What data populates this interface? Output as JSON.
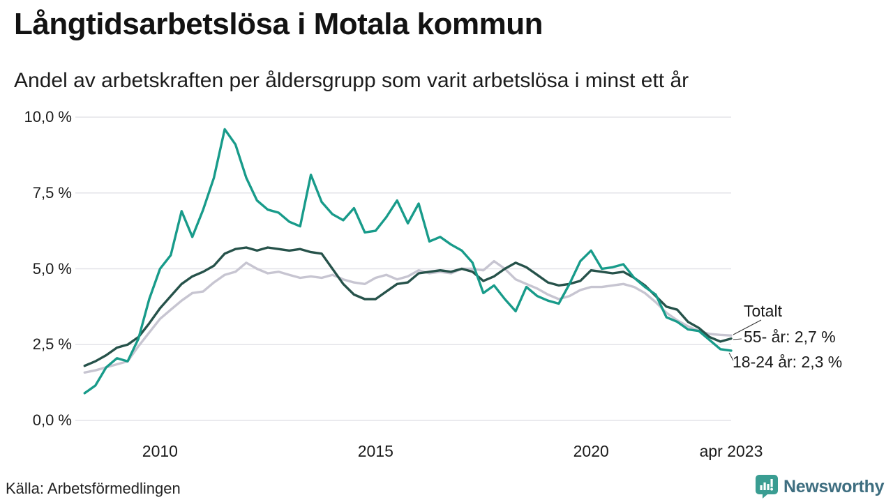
{
  "header": {
    "title": "Långtidsarbetslösa i Motala kommun",
    "subtitle": "Andel av arbetskraften per åldersgrupp som varit arbetslösa i minst ett år"
  },
  "source": {
    "label": "Källa: Arbetsförmedlingen"
  },
  "logo": {
    "brand": "Newsworthy",
    "icon": "newsworthy-speech-bubble-bar-chart-icon",
    "icon_color": "#3a9d92",
    "text_color": "#3e6e80"
  },
  "chart_data": {
    "type": "line",
    "title": "Långtidsarbetslösa i Motala kommun",
    "subtitle": "Andel av arbetskraften per åldersgrupp som varit arbetslösa i minst ett år",
    "unit": "% av arbetskraften",
    "x_start": 2008.25,
    "x_step": 0.25,
    "x_domain": [
      2008.1,
      2023.25
    ],
    "ylim": [
      0,
      10
    ],
    "grid": "horizontal",
    "y_ticks": [
      {
        "v": 10,
        "label": "10,0 %"
      },
      {
        "v": 7.5,
        "label": "7,5 %"
      },
      {
        "v": 5,
        "label": "5,0 %"
      },
      {
        "v": 2.5,
        "label": "2,5 %"
      },
      {
        "v": 0,
        "label": "0,0 %"
      }
    ],
    "x_ticks": [
      {
        "v": 2010,
        "label": "2010"
      },
      {
        "v": 2015,
        "label": "2015"
      },
      {
        "v": 2020,
        "label": "2020"
      },
      {
        "v": 2023.25,
        "label": "apr 2023"
      }
    ],
    "series": [
      {
        "name": "Totalt",
        "color": "#c7c5d1",
        "values": [
          1.58,
          1.65,
          1.75,
          1.85,
          1.95,
          2.45,
          2.9,
          3.35,
          3.65,
          3.95,
          4.2,
          4.25,
          4.55,
          4.8,
          4.9,
          5.2,
          5.0,
          4.85,
          4.9,
          4.8,
          4.7,
          4.75,
          4.7,
          4.8,
          4.65,
          4.55,
          4.5,
          4.7,
          4.8,
          4.65,
          4.75,
          4.95,
          4.85,
          4.9,
          4.85,
          5.0,
          5.0,
          4.95,
          5.25,
          5.0,
          4.65,
          4.5,
          4.35,
          4.15,
          4.0,
          4.1,
          4.3,
          4.4,
          4.4,
          4.45,
          4.5,
          4.4,
          4.2,
          3.9,
          3.55,
          3.3,
          3.1,
          2.95,
          2.85,
          2.82,
          2.8
        ]
      },
      {
        "name": "55- år",
        "color": "#26524a",
        "values": [
          1.8,
          1.95,
          2.15,
          2.4,
          2.5,
          2.75,
          3.2,
          3.7,
          4.1,
          4.5,
          4.75,
          4.9,
          5.1,
          5.5,
          5.65,
          5.7,
          5.6,
          5.7,
          5.65,
          5.6,
          5.65,
          5.55,
          5.5,
          5.0,
          4.5,
          4.15,
          4.0,
          4.0,
          4.25,
          4.5,
          4.55,
          4.85,
          4.9,
          4.95,
          4.9,
          5.0,
          4.9,
          4.6,
          4.75,
          5.0,
          5.2,
          5.05,
          4.8,
          4.55,
          4.45,
          4.5,
          4.6,
          4.95,
          4.9,
          4.85,
          4.9,
          4.7,
          4.45,
          4.1,
          3.75,
          3.65,
          3.25,
          3.05,
          2.75,
          2.6,
          2.7
        ]
      },
      {
        "name": "18-24 år",
        "color": "#189b8a",
        "values": [
          0.9,
          1.15,
          1.75,
          2.05,
          1.95,
          2.7,
          4.0,
          5.0,
          5.45,
          6.9,
          6.05,
          6.95,
          8.0,
          9.6,
          9.1,
          8.0,
          7.25,
          6.95,
          6.85,
          6.55,
          6.4,
          8.1,
          7.2,
          6.8,
          6.6,
          7.0,
          6.2,
          6.25,
          6.7,
          7.25,
          6.5,
          7.15,
          5.9,
          6.05,
          5.8,
          5.6,
          5.2,
          4.2,
          4.45,
          4.0,
          3.6,
          4.4,
          4.1,
          3.95,
          3.85,
          4.5,
          5.25,
          5.6,
          5.0,
          5.05,
          5.15,
          4.7,
          4.4,
          4.15,
          3.4,
          3.25,
          3.0,
          2.95,
          2.65,
          2.35,
          2.3
        ]
      }
    ],
    "annotations": [
      {
        "text": "Totalt",
        "series": "Totalt",
        "leader": [
          [
            1051,
            480
          ],
          [
            1091,
            459
          ]
        ]
      },
      {
        "text": "55- år: 2,7 %",
        "series": "55- år",
        "leader": [
          [
            1051,
            487
          ],
          [
            1063,
            486
          ]
        ]
      },
      {
        "text": "18-24 år: 2,3 %",
        "series": "18-24 år",
        "leader": [
          [
            1045,
            506
          ],
          [
            1051,
            517
          ]
        ]
      }
    ],
    "grid_color": "#e3e3e8",
    "end_values": {
      "Totalt": 2.8,
      "55- år": 2.7,
      "18-24 år": 2.3
    }
  }
}
